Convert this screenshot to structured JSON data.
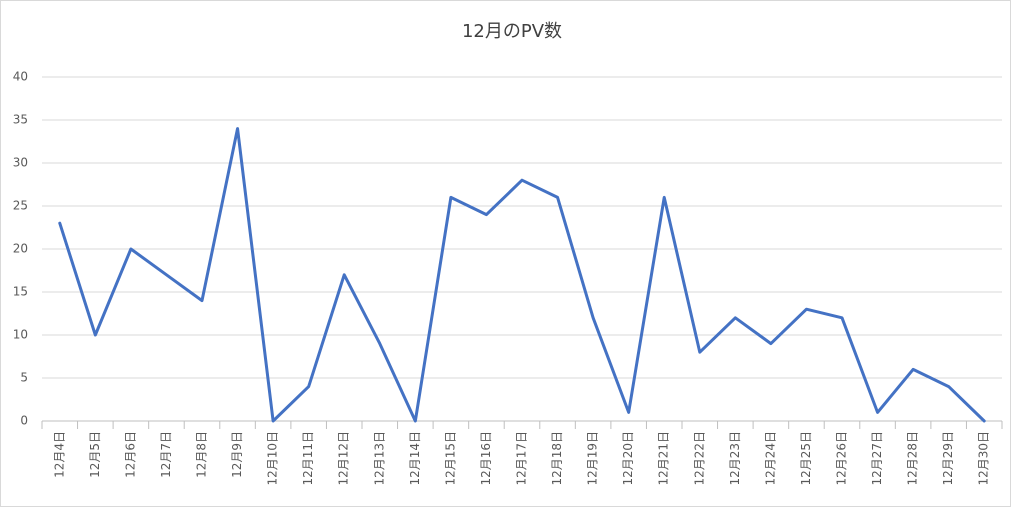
{
  "chart_data": {
    "type": "line",
    "title": "12月のPV数",
    "categories": [
      "12月4日",
      "12月5日",
      "12月6日",
      "12月7日",
      "12月8日",
      "12月9日",
      "12月10日",
      "12月11日",
      "12月12日",
      "12月13日",
      "12月14日",
      "12月15日",
      "12月16日",
      "12月17日",
      "12月18日",
      "12月19日",
      "12月20日",
      "12月21日",
      "12月22日",
      "12月23日",
      "12月24日",
      "12月25日",
      "12月26日",
      "12月27日",
      "12月28日",
      "12月29日",
      "12月30日"
    ],
    "values": [
      23,
      10,
      20,
      17,
      14,
      34,
      0,
      4,
      17,
      9,
      0,
      26,
      24,
      28,
      26,
      12,
      1,
      26,
      8,
      12,
      9,
      13,
      12,
      1,
      6,
      4,
      0
    ],
    "color": "#4472c4",
    "ylim": [
      0,
      40
    ],
    "yticks": [
      0,
      5,
      10,
      15,
      20,
      25,
      30,
      35,
      40
    ],
    "grid": true
  }
}
